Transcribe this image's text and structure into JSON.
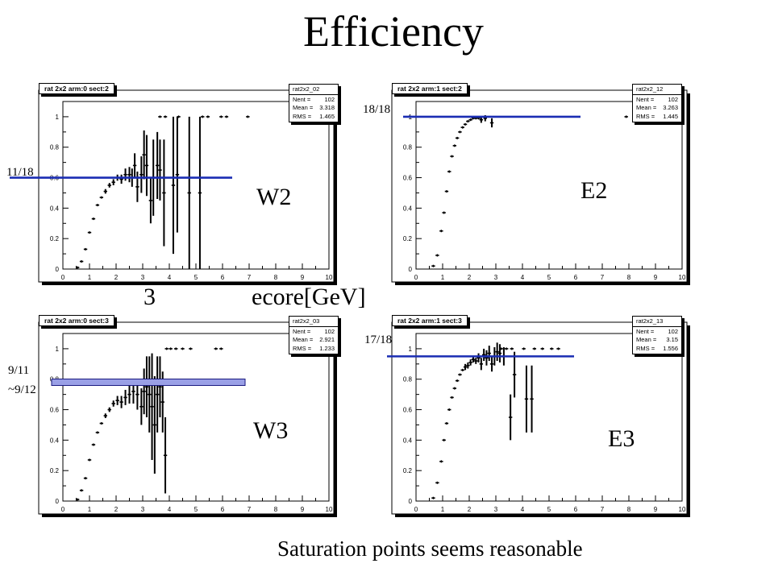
{
  "title": "Efficiency",
  "footer": "Saturation points seems reasonable",
  "annotations": {
    "w2": "W2",
    "e2": "E2",
    "w3": "W3",
    "e3": "E3",
    "three": "3",
    "ecore": "ecore[GeV]",
    "sat_w2": "11/18",
    "sat_e2": "18/18",
    "sat_w3_a": "9/11",
    "sat_w3_b": "~9/12",
    "sat_e3": "17/18"
  },
  "colors": {
    "saturation_line": "#1a2db3",
    "w3_band": "#9aa0e6"
  },
  "chart_data": [
    {
      "type": "scatter",
      "title": "rat 2x2 arm:0 sect:2",
      "stats": {
        "name": "rat2x2_02",
        "Nent": "102",
        "Mean": "3.318",
        "RMS": "1.465"
      },
      "xlim": [
        0,
        10
      ],
      "ylim": [
        0,
        1.1
      ],
      "xticks": [
        "0",
        "1",
        "2",
        "3",
        "4",
        "5",
        "6",
        "7",
        "8",
        "9",
        "10"
      ],
      "yticks": [
        "0",
        "0.2",
        "0.4",
        "0.6",
        "0.8",
        "1"
      ],
      "saturation": 0.6,
      "points": [
        {
          "x": 0.55,
          "y": 0.01,
          "e": 0.005
        },
        {
          "x": 0.7,
          "y": 0.05,
          "e": 0.01
        },
        {
          "x": 0.85,
          "y": 0.13,
          "e": 0.01
        },
        {
          "x": 1.0,
          "y": 0.24,
          "e": 0.01
        },
        {
          "x": 1.15,
          "y": 0.33,
          "e": 0.01
        },
        {
          "x": 1.3,
          "y": 0.42,
          "e": 0.01
        },
        {
          "x": 1.45,
          "y": 0.47,
          "e": 0.01
        },
        {
          "x": 1.6,
          "y": 0.51,
          "e": 0.015
        },
        {
          "x": 1.75,
          "y": 0.55,
          "e": 0.015
        },
        {
          "x": 1.9,
          "y": 0.57,
          "e": 0.02
        },
        {
          "x": 2.05,
          "y": 0.6,
          "e": 0.02
        },
        {
          "x": 2.2,
          "y": 0.59,
          "e": 0.03
        },
        {
          "x": 2.35,
          "y": 0.62,
          "e": 0.04
        },
        {
          "x": 2.5,
          "y": 0.62,
          "e": 0.05
        },
        {
          "x": 2.6,
          "y": 0.6,
          "e": 0.06
        },
        {
          "x": 2.7,
          "y": 0.68,
          "e": 0.08
        },
        {
          "x": 2.8,
          "y": 0.54,
          "e": 0.1
        },
        {
          "x": 2.95,
          "y": 0.62,
          "e": 0.12
        },
        {
          "x": 3.05,
          "y": 0.75,
          "e": 0.16
        },
        {
          "x": 3.15,
          "y": 0.68,
          "e": 0.2
        },
        {
          "x": 3.3,
          "y": 0.45,
          "e": 0.15
        },
        {
          "x": 3.4,
          "y": 0.6,
          "e": 0.25
        },
        {
          "x": 3.55,
          "y": 0.68,
          "e": 0.22
        },
        {
          "x": 3.65,
          "y": 0.65,
          "e": 0.2
        },
        {
          "x": 3.8,
          "y": 0.5,
          "e": 0.35
        },
        {
          "x": 4.15,
          "y": 0.55,
          "e": 0.45
        },
        {
          "x": 4.3,
          "y": 0.62,
          "e": 0.38
        },
        {
          "x": 4.75,
          "y": 0.5,
          "e": 0.5
        },
        {
          "x": 5.15,
          "y": 0.5,
          "e": 0.5
        },
        {
          "x": 3.65,
          "y": 1.0,
          "e": 0
        },
        {
          "x": 3.85,
          "y": 1.0,
          "e": 0
        },
        {
          "x": 4.35,
          "y": 1.0,
          "e": 0
        },
        {
          "x": 5.25,
          "y": 1.0,
          "e": 0
        },
        {
          "x": 5.45,
          "y": 1.0,
          "e": 0
        },
        {
          "x": 5.95,
          "y": 1.0,
          "e": 0
        },
        {
          "x": 6.15,
          "y": 1.0,
          "e": 0
        },
        {
          "x": 6.95,
          "y": 1.0,
          "e": 0
        }
      ]
    },
    {
      "type": "scatter",
      "title": "rat 2x2 arm:1 sect:2",
      "stats": {
        "name": "rat2x2_12",
        "Nent": "102",
        "Mean": "3.263",
        "RMS": "1.445"
      },
      "xlim": [
        0,
        10
      ],
      "ylim": [
        0,
        1.1
      ],
      "xticks": [
        "0",
        "1",
        "2",
        "3",
        "4",
        "5",
        "6",
        "7",
        "8",
        "9",
        "10"
      ],
      "yticks": [
        "0",
        "0.2",
        "0.4",
        "0.6",
        "0.8",
        "1"
      ],
      "saturation": 1.0,
      "points": [
        {
          "x": 0.65,
          "y": 0.02,
          "e": 0.005
        },
        {
          "x": 0.8,
          "y": 0.09,
          "e": 0.01
        },
        {
          "x": 0.95,
          "y": 0.25,
          "e": 0.01
        },
        {
          "x": 1.05,
          "y": 0.37,
          "e": 0.01
        },
        {
          "x": 1.15,
          "y": 0.51,
          "e": 0.01
        },
        {
          "x": 1.25,
          "y": 0.64,
          "e": 0.01
        },
        {
          "x": 1.35,
          "y": 0.74,
          "e": 0.01
        },
        {
          "x": 1.45,
          "y": 0.81,
          "e": 0.01
        },
        {
          "x": 1.55,
          "y": 0.86,
          "e": 0.01
        },
        {
          "x": 1.65,
          "y": 0.9,
          "e": 0.01
        },
        {
          "x": 1.75,
          "y": 0.93,
          "e": 0.01
        },
        {
          "x": 1.85,
          "y": 0.95,
          "e": 0.01
        },
        {
          "x": 1.95,
          "y": 0.97,
          "e": 0.01
        },
        {
          "x": 2.05,
          "y": 0.98,
          "e": 0.01
        },
        {
          "x": 2.15,
          "y": 0.99,
          "e": 0.01
        },
        {
          "x": 2.25,
          "y": 0.99,
          "e": 0.01
        },
        {
          "x": 2.35,
          "y": 0.99,
          "e": 0.01
        },
        {
          "x": 2.45,
          "y": 0.98,
          "e": 0.02
        },
        {
          "x": 2.6,
          "y": 0.99,
          "e": 0.02
        },
        {
          "x": 2.85,
          "y": 0.96,
          "e": 0.03
        },
        {
          "x": 7.9,
          "y": 1.0,
          "e": 0
        }
      ]
    },
    {
      "type": "scatter",
      "title": "rat 2x2 arm:0 sect:3",
      "stats": {
        "name": "rat2x2_03",
        "Nent": "102",
        "Mean": "2.921",
        "RMS": "1.233"
      },
      "xlim": [
        0,
        10
      ],
      "ylim": [
        0,
        1.1
      ],
      "xticks": [
        "0",
        "1",
        "2",
        "3",
        "4",
        "5",
        "6",
        "7",
        "8",
        "9",
        "10"
      ],
      "yticks": [
        "0",
        "0.2",
        "0.4",
        "0.6",
        "0.8",
        "1"
      ],
      "saturation": 0.78,
      "points": [
        {
          "x": 0.55,
          "y": 0.01,
          "e": 0.005
        },
        {
          "x": 0.7,
          "y": 0.07,
          "e": 0.01
        },
        {
          "x": 0.85,
          "y": 0.15,
          "e": 0.01
        },
        {
          "x": 1.0,
          "y": 0.27,
          "e": 0.01
        },
        {
          "x": 1.15,
          "y": 0.37,
          "e": 0.01
        },
        {
          "x": 1.3,
          "y": 0.45,
          "e": 0.01
        },
        {
          "x": 1.45,
          "y": 0.51,
          "e": 0.01
        },
        {
          "x": 1.6,
          "y": 0.56,
          "e": 0.015
        },
        {
          "x": 1.75,
          "y": 0.6,
          "e": 0.015
        },
        {
          "x": 1.9,
          "y": 0.64,
          "e": 0.02
        },
        {
          "x": 2.05,
          "y": 0.66,
          "e": 0.03
        },
        {
          "x": 2.2,
          "y": 0.65,
          "e": 0.04
        },
        {
          "x": 2.35,
          "y": 0.68,
          "e": 0.05
        },
        {
          "x": 2.5,
          "y": 0.7,
          "e": 0.06
        },
        {
          "x": 2.65,
          "y": 0.72,
          "e": 0.08
        },
        {
          "x": 2.8,
          "y": 0.7,
          "e": 0.1
        },
        {
          "x": 2.95,
          "y": 0.62,
          "e": 0.12
        },
        {
          "x": 3.05,
          "y": 0.72,
          "e": 0.15
        },
        {
          "x": 3.15,
          "y": 0.75,
          "e": 0.2
        },
        {
          "x": 3.25,
          "y": 0.7,
          "e": 0.25
        },
        {
          "x": 3.35,
          "y": 0.62,
          "e": 0.35
        },
        {
          "x": 3.45,
          "y": 0.5,
          "e": 0.32
        },
        {
          "x": 3.55,
          "y": 0.7,
          "e": 0.25
        },
        {
          "x": 3.65,
          "y": 0.75,
          "e": 0.2
        },
        {
          "x": 3.75,
          "y": 0.65,
          "e": 0.2
        },
        {
          "x": 3.85,
          "y": 0.3,
          "e": 0.25
        },
        {
          "x": 3.9,
          "y": 1.0,
          "e": 0
        },
        {
          "x": 4.05,
          "y": 1.0,
          "e": 0
        },
        {
          "x": 4.25,
          "y": 1.0,
          "e": 0
        },
        {
          "x": 4.5,
          "y": 1.0,
          "e": 0
        },
        {
          "x": 4.8,
          "y": 1.0,
          "e": 0
        },
        {
          "x": 5.75,
          "y": 1.0,
          "e": 0
        },
        {
          "x": 5.95,
          "y": 1.0,
          "e": 0
        }
      ]
    },
    {
      "type": "scatter",
      "title": "rat 2x2 arm:1 sect:3",
      "stats": {
        "name": "rat2x2_13",
        "Nent": "102",
        "Mean": "3.15",
        "RMS": "1.556"
      },
      "xlim": [
        0,
        10
      ],
      "ylim": [
        0,
        1.1
      ],
      "xticks": [
        "0",
        "1",
        "2",
        "3",
        "4",
        "5",
        "6",
        "7",
        "8",
        "9",
        "10"
      ],
      "yticks": [
        "0",
        "0.2",
        "0.4",
        "0.6",
        "0.8",
        "1"
      ],
      "saturation": 0.95,
      "points": [
        {
          "x": 0.65,
          "y": 0.02,
          "e": 0.005
        },
        {
          "x": 0.8,
          "y": 0.12,
          "e": 0.01
        },
        {
          "x": 0.95,
          "y": 0.26,
          "e": 0.01
        },
        {
          "x": 1.05,
          "y": 0.4,
          "e": 0.01
        },
        {
          "x": 1.15,
          "y": 0.51,
          "e": 0.01
        },
        {
          "x": 1.25,
          "y": 0.6,
          "e": 0.01
        },
        {
          "x": 1.35,
          "y": 0.68,
          "e": 0.01
        },
        {
          "x": 1.45,
          "y": 0.74,
          "e": 0.01
        },
        {
          "x": 1.55,
          "y": 0.79,
          "e": 0.01
        },
        {
          "x": 1.65,
          "y": 0.83,
          "e": 0.01
        },
        {
          "x": 1.75,
          "y": 0.86,
          "e": 0.01
        },
        {
          "x": 1.85,
          "y": 0.88,
          "e": 0.02
        },
        {
          "x": 1.95,
          "y": 0.89,
          "e": 0.02
        },
        {
          "x": 2.05,
          "y": 0.91,
          "e": 0.02
        },
        {
          "x": 2.15,
          "y": 0.93,
          "e": 0.02
        },
        {
          "x": 2.25,
          "y": 0.92,
          "e": 0.02
        },
        {
          "x": 2.35,
          "y": 0.94,
          "e": 0.03
        },
        {
          "x": 2.45,
          "y": 0.9,
          "e": 0.04
        },
        {
          "x": 2.55,
          "y": 0.96,
          "e": 0.04
        },
        {
          "x": 2.65,
          "y": 0.94,
          "e": 0.05
        },
        {
          "x": 2.75,
          "y": 0.97,
          "e": 0.05
        },
        {
          "x": 2.85,
          "y": 0.9,
          "e": 0.05
        },
        {
          "x": 2.95,
          "y": 0.95,
          "e": 0.06
        },
        {
          "x": 3.05,
          "y": 0.98,
          "e": 0.06
        },
        {
          "x": 3.15,
          "y": 0.97,
          "e": 0.06
        },
        {
          "x": 3.3,
          "y": 0.95,
          "e": 0.06
        },
        {
          "x": 3.55,
          "y": 0.55,
          "e": 0.15
        },
        {
          "x": 3.7,
          "y": 0.83,
          "e": 0.15
        },
        {
          "x": 4.15,
          "y": 0.67,
          "e": 0.22
        },
        {
          "x": 4.35,
          "y": 0.67,
          "e": 0.22
        },
        {
          "x": 3.2,
          "y": 1.0,
          "e": 0
        },
        {
          "x": 3.4,
          "y": 1.0,
          "e": 0
        },
        {
          "x": 3.6,
          "y": 1.0,
          "e": 0
        },
        {
          "x": 4.05,
          "y": 1.0,
          "e": 0
        },
        {
          "x": 4.45,
          "y": 1.0,
          "e": 0
        },
        {
          "x": 4.75,
          "y": 1.0,
          "e": 0
        },
        {
          "x": 5.1,
          "y": 1.0,
          "e": 0
        },
        {
          "x": 5.35,
          "y": 1.0,
          "e": 0
        }
      ]
    }
  ]
}
